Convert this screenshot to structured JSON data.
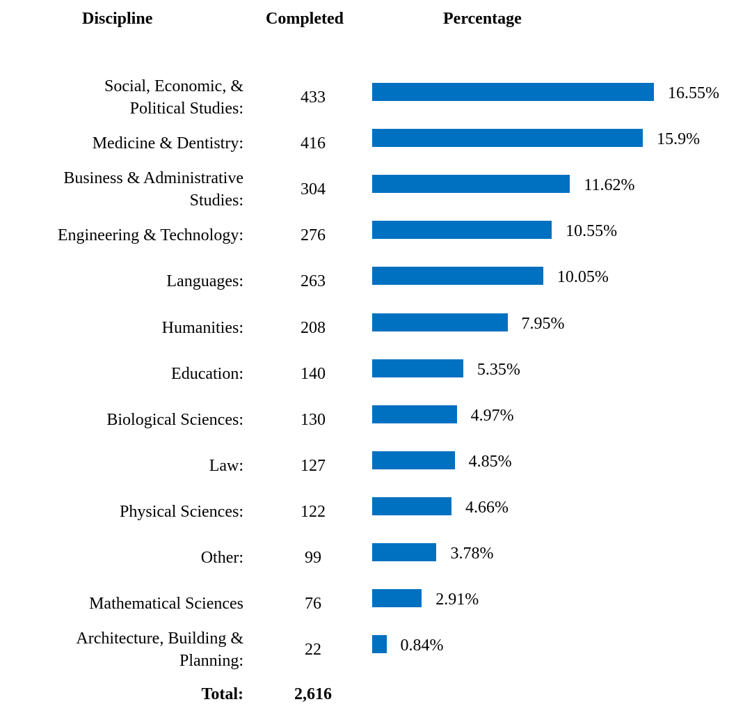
{
  "chart_data": {
    "type": "bar",
    "orientation": "horizontal",
    "headers": [
      "Discipline",
      "Completed",
      "Percentage"
    ],
    "categories": [
      "Social, Economic, &\nPolitical Studies:",
      "Medicine & Dentistry:",
      "Business & Administrative\nStudies:",
      "Engineering & Technology:",
      "Languages:",
      "Humanities:",
      "Education:",
      "Biological Sciences:",
      "Law:",
      "Physical Sciences:",
      "Other:",
      "Mathematical Sciences",
      "Architecture, Building &\nPlanning:"
    ],
    "completed": [
      433,
      416,
      304,
      276,
      263,
      208,
      140,
      130,
      127,
      122,
      99,
      76,
      22
    ],
    "values": [
      16.55,
      15.9,
      11.62,
      10.55,
      10.05,
      7.95,
      5.35,
      4.97,
      4.85,
      4.66,
      3.78,
      2.91,
      0.84
    ],
    "value_labels": [
      "16.55%",
      "15.9%",
      "11.62%",
      "10.55%",
      "10.05%",
      "7.95%",
      "5.35%",
      "4.97%",
      "4.85%",
      "4.66%",
      "3.78%",
      "2.91%",
      "0.84%"
    ],
    "color": "#0070c0",
    "total_label": "Total:",
    "total": {
      "value": 2616,
      "label": "2,616"
    }
  }
}
